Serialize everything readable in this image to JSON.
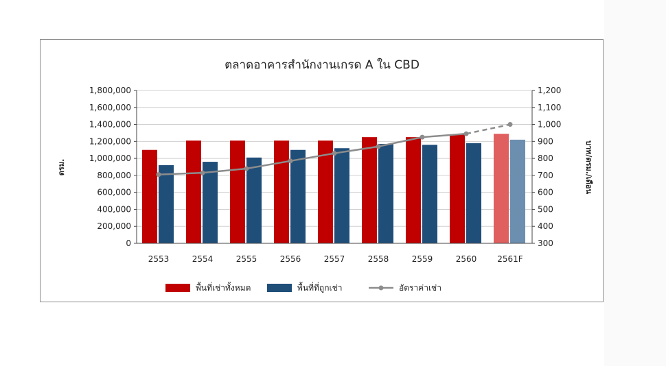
{
  "chart_data": {
    "type": "bar",
    "title": "ตลาดอาคารสำนักงานเกรด A ใน CBD",
    "ylabel": "ตรม.",
    "y2label": "บาท/ตรม./เดือน",
    "xlabel": "",
    "categories": [
      "2553",
      "2554",
      "2555",
      "2556",
      "2557",
      "2558",
      "2559",
      "2560",
      "2561F"
    ],
    "ylim": [
      0,
      1800000
    ],
    "y2lim": [
      300,
      1200
    ],
    "yticks": [
      0,
      200000,
      400000,
      600000,
      800000,
      1000000,
      1200000,
      1400000,
      1600000,
      1800000
    ],
    "y2ticks": [
      300,
      400,
      500,
      600,
      700,
      800,
      900,
      1000,
      1100,
      1200
    ],
    "yticklabels": [
      "0",
      "200,000",
      "400,000",
      "600,000",
      "800,000",
      "1,000,000",
      "1,200,000",
      "1,400,000",
      "1,600,000",
      "1,800,000"
    ],
    "y2ticklabels": [
      "300",
      "400",
      "500",
      "600",
      "700",
      "800",
      "900",
      "1,000",
      "1,100",
      "1,200"
    ],
    "grid": true,
    "legend_position": "bottom",
    "forecast_category": "2561F",
    "series": [
      {
        "name": "พื้นที่เช่าทั้งหมด",
        "kind": "bar",
        "axis": "left",
        "color": "#c00000",
        "forecast_color": "#e06060",
        "values": [
          1100000,
          1210000,
          1210000,
          1210000,
          1210000,
          1250000,
          1250000,
          1280000,
          1290000
        ]
      },
      {
        "name": "พื้นที่ที่ถูกเช่า",
        "kind": "bar",
        "axis": "left",
        "color": "#1f4e79",
        "forecast_color": "#6c8fb0",
        "values": [
          920000,
          960000,
          1010000,
          1100000,
          1120000,
          1170000,
          1160000,
          1180000,
          1220000
        ]
      },
      {
        "name": "อัตราค่าเช่า",
        "kind": "line",
        "axis": "right",
        "color": "#8c8c8c",
        "values": [
          705,
          715,
          740,
          785,
          830,
          870,
          925,
          945,
          1000
        ]
      }
    ]
  }
}
